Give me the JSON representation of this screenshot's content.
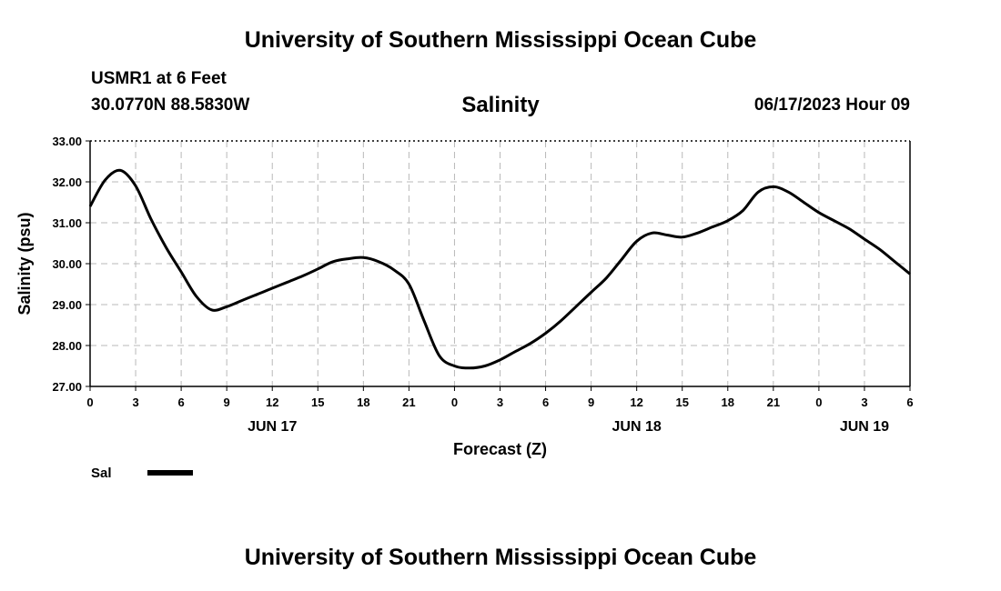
{
  "header": {
    "title": "University of Southern Mississippi Ocean Cube",
    "station": "USMR1 at 6 Feet",
    "coords": "30.0770N  88.5830W",
    "run_time": "06/17/2023 Hour 09"
  },
  "footer": {
    "title": "University of Southern Mississippi Ocean Cube"
  },
  "chart_data": {
    "type": "line",
    "title": "Salinity",
    "xlabel": "Forecast (Z)",
    "ylabel": "Salinity (psu)",
    "ylim": [
      27.0,
      33.0
    ],
    "xlim_hours": [
      0,
      54
    ],
    "y_ticks": [
      "27.00",
      "28.00",
      "29.00",
      "30.00",
      "31.00",
      "32.00",
      "33.00"
    ],
    "x_tick_labels": [
      "0",
      "3",
      "6",
      "9",
      "12",
      "15",
      "18",
      "21",
      "0",
      "3",
      "6",
      "9",
      "12",
      "15",
      "18",
      "21",
      "0",
      "3",
      "6"
    ],
    "day_labels": [
      {
        "label": "JUN 17",
        "hour": 12
      },
      {
        "label": "JUN 18",
        "hour": 36
      },
      {
        "label": "JUN 19",
        "hour": 51
      }
    ],
    "grid": true,
    "legend": [
      {
        "name": "Sal",
        "color": "#000000"
      }
    ],
    "series": [
      {
        "name": "Sal",
        "color": "#000000",
        "x": [
          0,
          1,
          2,
          3,
          4,
          5,
          6,
          7,
          8,
          9,
          10,
          11,
          12,
          13,
          14,
          15,
          16,
          17,
          18,
          19,
          20,
          21,
          22,
          23,
          24,
          25,
          26,
          27,
          28,
          29,
          30,
          31,
          32,
          33,
          34,
          35,
          36,
          37,
          38,
          39,
          40,
          41,
          42,
          43,
          44,
          45,
          46,
          47,
          48,
          49,
          50,
          51,
          52,
          53,
          54
        ],
        "values": [
          31.4,
          32.05,
          32.28,
          31.9,
          31.1,
          30.4,
          29.8,
          29.2,
          28.87,
          28.95,
          29.1,
          29.25,
          29.4,
          29.55,
          29.7,
          29.87,
          30.05,
          30.12,
          30.15,
          30.05,
          29.85,
          29.5,
          28.6,
          27.75,
          27.5,
          27.45,
          27.5,
          27.65,
          27.85,
          28.05,
          28.3,
          28.6,
          28.95,
          29.3,
          29.65,
          30.1,
          30.55,
          30.75,
          30.7,
          30.65,
          30.75,
          30.9,
          31.05,
          31.3,
          31.75,
          31.88,
          31.75,
          31.5,
          31.25,
          31.05,
          30.85,
          30.6,
          30.35,
          30.05,
          29.75
        ]
      }
    ]
  }
}
